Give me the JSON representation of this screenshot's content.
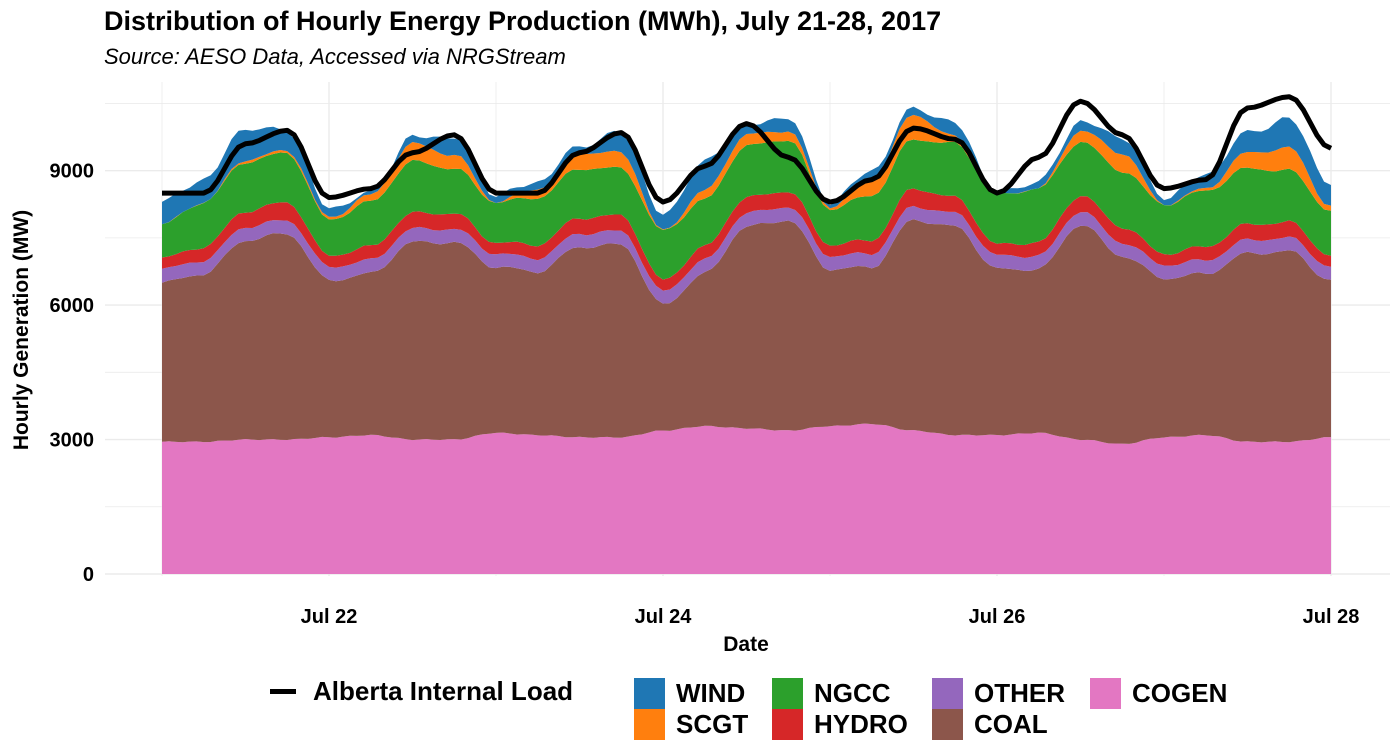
{
  "header": {
    "title": "Distribution of Hourly Energy Production (MWh), July 21-28, 2017",
    "subtitle": "Source: AESO Data, Accessed via NRGStream"
  },
  "chart_data": {
    "type": "area",
    "stacked": true,
    "xlabel": "Date",
    "ylabel": "Hourly Generation (MW)",
    "x_ticks": [
      "Jul 22",
      "Jul 24",
      "Jul 26",
      "Jul 28"
    ],
    "y_ticks": [
      0,
      3000,
      6000,
      9000
    ],
    "xlim": [
      "2017-07-21 00:00",
      "2017-07-28 00:00"
    ],
    "ylim": [
      0,
      10800
    ],
    "grid": true,
    "legend_position": "bottom",
    "x": [
      "2017-07-21 00:00",
      "2017-07-21 06:00",
      "2017-07-21 12:00",
      "2017-07-21 18:00",
      "2017-07-22 00:00",
      "2017-07-22 06:00",
      "2017-07-22 12:00",
      "2017-07-22 18:00",
      "2017-07-23 00:00",
      "2017-07-23 06:00",
      "2017-07-23 12:00",
      "2017-07-23 18:00",
      "2017-07-24 00:00",
      "2017-07-24 06:00",
      "2017-07-24 12:00",
      "2017-07-24 18:00",
      "2017-07-25 00:00",
      "2017-07-25 06:00",
      "2017-07-25 12:00",
      "2017-07-25 18:00",
      "2017-07-26 00:00",
      "2017-07-26 06:00",
      "2017-07-26 12:00",
      "2017-07-26 18:00",
      "2017-07-27 00:00",
      "2017-07-27 06:00",
      "2017-07-27 12:00",
      "2017-07-27 18:00",
      "2017-07-28 00:00"
    ],
    "series": [
      {
        "name": "COGEN",
        "color": "#E377C2",
        "values": [
          2950,
          2950,
          3000,
          3000,
          3050,
          3100,
          3000,
          3000,
          3150,
          3100,
          3050,
          3050,
          3200,
          3300,
          3250,
          3200,
          3300,
          3350,
          3200,
          3100,
          3100,
          3150,
          3000,
          2900,
          3050,
          3100,
          2950,
          2950,
          3050
        ]
      },
      {
        "name": "COAL",
        "color": "#8C564B",
        "values": [
          3550,
          3750,
          4450,
          4600,
          3500,
          3600,
          4400,
          4400,
          3700,
          3650,
          4250,
          4300,
          2800,
          3400,
          4500,
          4700,
          3500,
          3500,
          4700,
          4650,
          3700,
          3650,
          4800,
          4200,
          3550,
          3600,
          4200,
          4250,
          3500
        ]
      },
      {
        "name": "OTHER",
        "color": "#9467BD",
        "values": [
          300,
          300,
          300,
          300,
          300,
          300,
          300,
          300,
          300,
          300,
          300,
          300,
          300,
          300,
          300,
          300,
          300,
          300,
          300,
          300,
          300,
          300,
          300,
          300,
          300,
          300,
          300,
          300,
          300
        ]
      },
      {
        "name": "HYDRO",
        "color": "#D62728",
        "values": [
          250,
          300,
          350,
          400,
          250,
          300,
          350,
          350,
          250,
          300,
          350,
          350,
          250,
          300,
          350,
          350,
          250,
          300,
          400,
          350,
          250,
          300,
          350,
          350,
          250,
          300,
          350,
          350,
          250
        ]
      },
      {
        "name": "NGCC",
        "color": "#2CA02C",
        "values": [
          750,
          1000,
          1100,
          1100,
          800,
          1000,
          1150,
          1000,
          900,
          1050,
          1100,
          1050,
          1100,
          1050,
          1150,
          1150,
          800,
          1000,
          1100,
          1200,
          1100,
          1200,
          1200,
          1250,
          1100,
          1250,
          1250,
          1150,
          1000
        ]
      },
      {
        "name": "SCGT",
        "color": "#FF7F0E",
        "values": [
          0,
          0,
          50,
          50,
          50,
          150,
          400,
          300,
          0,
          200,
          350,
          350,
          0,
          200,
          250,
          200,
          50,
          350,
          550,
          150,
          0,
          0,
          250,
          400,
          0,
          50,
          350,
          500,
          100
        ]
      },
      {
        "name": "WIND",
        "color": "#1F77B4",
        "values": [
          500,
          500,
          700,
          450,
          200,
          50,
          150,
          400,
          150,
          150,
          150,
          450,
          350,
          650,
          200,
          300,
          100,
          200,
          150,
          300,
          50,
          150,
          200,
          350,
          150,
          300,
          450,
          650,
          500
        ]
      }
    ],
    "line_series": {
      "name": "Alberta Internal Load",
      "color": "#000000",
      "values": [
        8500,
        8500,
        9600,
        9900,
        8400,
        8600,
        9400,
        9800,
        8500,
        8500,
        9400,
        9850,
        8300,
        9100,
        10050,
        9300,
        8300,
        8800,
        9950,
        9700,
        8500,
        9300,
        10550,
        9800,
        8600,
        8800,
        10400,
        10650,
        9500
      ]
    },
    "legend": [
      {
        "label": "Alberta Internal Load",
        "kind": "line",
        "color": "#000000"
      },
      {
        "label": "WIND",
        "kind": "fill",
        "color": "#1F77B4"
      },
      {
        "label": "SCGT",
        "kind": "fill",
        "color": "#FF7F0E"
      },
      {
        "label": "NGCC",
        "kind": "fill",
        "color": "#2CA02C"
      },
      {
        "label": "HYDRO",
        "kind": "fill",
        "color": "#D62728"
      },
      {
        "label": "OTHER",
        "kind": "fill",
        "color": "#9467BD"
      },
      {
        "label": "COAL",
        "kind": "fill",
        "color": "#8C564B"
      },
      {
        "label": "COGEN",
        "kind": "fill",
        "color": "#E377C2"
      }
    ]
  }
}
